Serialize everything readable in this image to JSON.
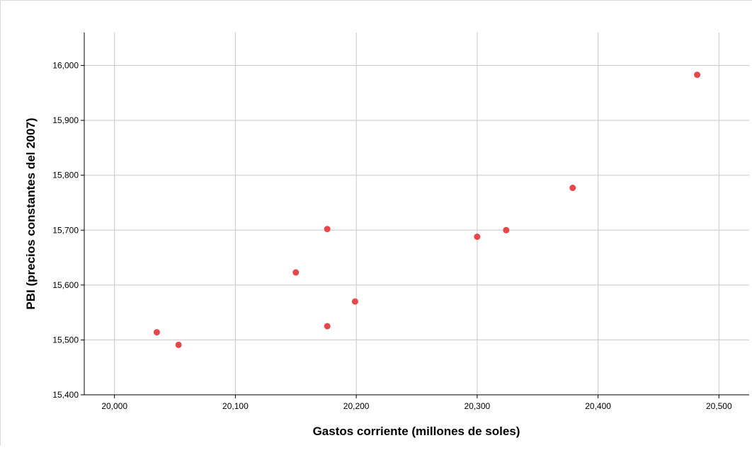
{
  "chart_data": {
    "type": "scatter",
    "title": "",
    "xlabel": "Gastos corriente (millones de soles)",
    "ylabel": "PBI (precios constantes del 2007)",
    "xlim": [
      19975,
      20525
    ],
    "ylim": [
      15400,
      16060
    ],
    "xticks": [
      20000,
      20100,
      20200,
      20300,
      20400,
      20500
    ],
    "yticks": [
      15400,
      15500,
      15600,
      15700,
      15800,
      15900,
      16000
    ],
    "xtick_labels": [
      "20,000",
      "20,100",
      "20,200",
      "20,300",
      "20,400",
      "20,500"
    ],
    "ytick_labels": [
      "15,400",
      "15,500",
      "15,600",
      "15,700",
      "15,800",
      "15,900",
      "16,000"
    ],
    "grid": true,
    "legend": "none",
    "marker_color": "#e8474a",
    "series": [
      {
        "x": [
          20035,
          20053,
          20150,
          20176,
          20176,
          20199,
          20300,
          20324,
          20379,
          20482
        ],
        "y": [
          15514,
          15491,
          15623,
          15702,
          15525,
          15570,
          15688,
          15700,
          15777,
          15983
        ]
      }
    ]
  }
}
